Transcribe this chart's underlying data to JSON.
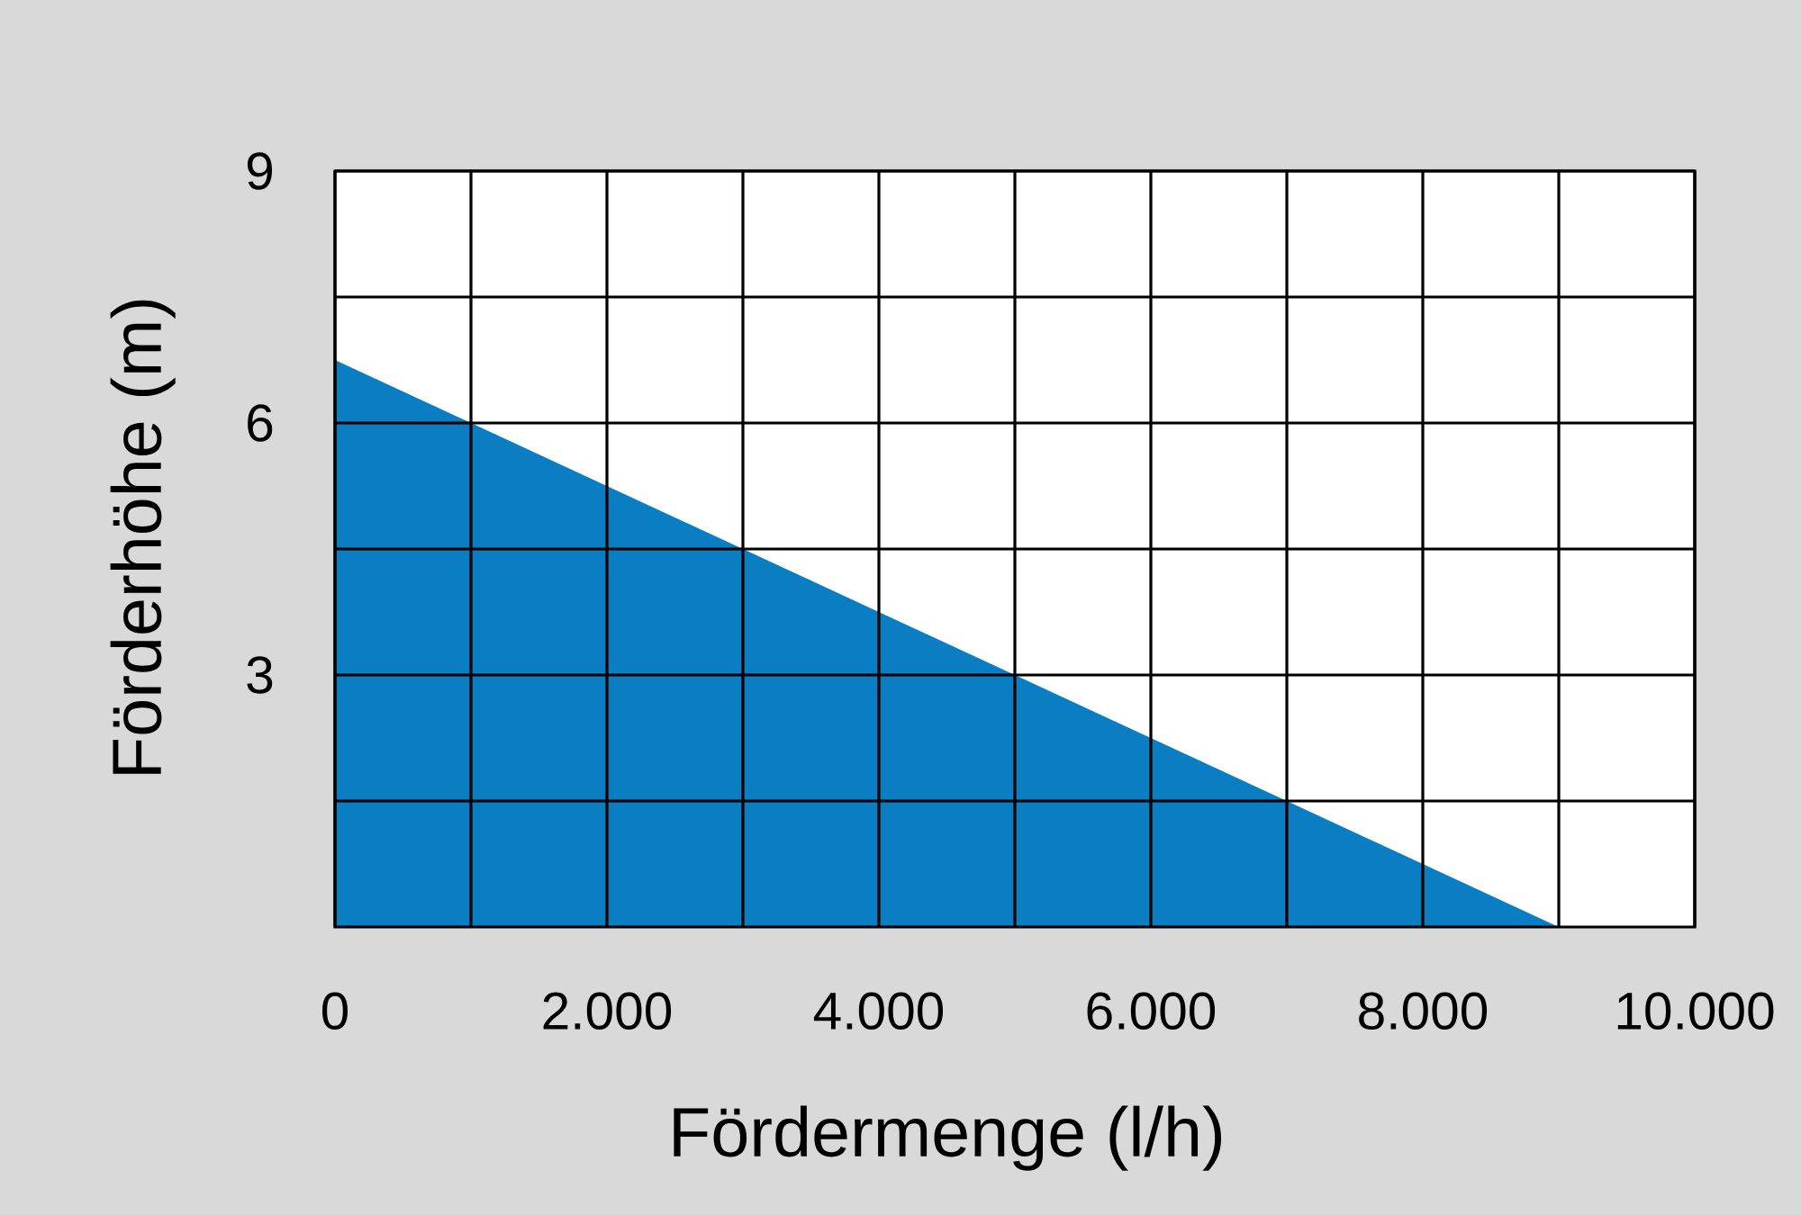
{
  "chart_data": {
    "type": "area",
    "xlabel": "Fördermenge (l/h)",
    "ylabel": "Förderhöhe (m)",
    "x": [
      0,
      9000
    ],
    "values": [
      6.75,
      0
    ],
    "color": "#0b7dc2",
    "xlim": [
      0,
      10000
    ],
    "ylim": [
      0,
      9
    ],
    "xticks": [
      0,
      {
        "value": 1000,
        "label": null
      },
      {
        "value": 2000,
        "label": "2.000"
      },
      {
        "value": 3000,
        "label": null
      },
      {
        "value": 4000,
        "label": "4.000"
      },
      {
        "value": 5000,
        "label": null
      },
      {
        "value": 6000,
        "label": "6.000"
      },
      {
        "value": 7000,
        "label": null
      },
      {
        "value": 8000,
        "label": "8.000"
      },
      {
        "value": 9000,
        "label": null
      },
      {
        "value": 10000,
        "label": "10.000"
      }
    ],
    "yticks": [
      {
        "value": 1.5,
        "label": null
      },
      3,
      {
        "value": 4.5,
        "label": null
      },
      6,
      {
        "value": 7.5,
        "label": null
      },
      9
    ],
    "grid": true
  }
}
